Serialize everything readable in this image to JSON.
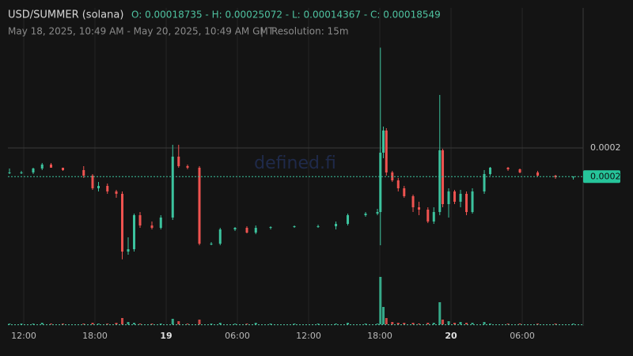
{
  "chart_data": {
    "type": "candlestick",
    "title": "USD/SUMMER (solana)",
    "ohlc": "O: 0.00018735 - H: 0.00025072 - L: 0.00014367 - C: 0.00018549",
    "subtitle": "May 18, 2025, 10:49 AM - May 20, 2025, 10:49 AM GMT",
    "separator": "|",
    "resolution": "Resolution: 15m",
    "watermark": "defined.fi",
    "up_color": "#3cc39e",
    "down_color": "#ef5350",
    "grid": true,
    "xlim": [
      0,
      48.33
    ],
    "xticks": [
      {
        "value": 1.2,
        "label": "12:00"
      },
      {
        "value": 7.2,
        "label": "18:00"
      },
      {
        "value": 13.2,
        "label": "19"
      },
      {
        "value": 19.2,
        "label": "06:00"
      },
      {
        "value": 25.2,
        "label": "12:00"
      },
      {
        "value": 31.2,
        "label": "18:00"
      },
      {
        "value": 37.2,
        "label": "20"
      },
      {
        "value": 43.2,
        "label": "06:00"
      }
    ],
    "ylim": [
      0.0001108,
      0.0002708
    ],
    "yticks": [
      0.0002
    ],
    "last_price": {
      "value": 0.00018549,
      "label": "0.0002"
    },
    "volume_lim": [
      0,
      60
    ],
    "candles": {
      "x": [
        0,
        1,
        2,
        2.75,
        3.5,
        4.5,
        6.25,
        7,
        7.5,
        8.25,
        9,
        9.5,
        10,
        10.5,
        11,
        12,
        12.75,
        13.75,
        14.25,
        15,
        16,
        17,
        17.75,
        19,
        20,
        20.75,
        22,
        24,
        26,
        27.5,
        28.5,
        30,
        31,
        31.25,
        31.5,
        31.75,
        32.25,
        32.75,
        33.25,
        34,
        34.5,
        35.25,
        35.75,
        36.25,
        36.5,
        37,
        37.5,
        38,
        38.5,
        39,
        40,
        40.5,
        42,
        43,
        44.5,
        46,
        47.5
      ],
      "open": [
        0.00018735,
        0.0001876,
        0.0001876,
        0.0001896,
        0.0001916,
        0.00019,
        0.0001888,
        0.000186,
        0.0001796,
        0.0001808,
        0.000178,
        0.0001768,
        0.0001476,
        0.0001488,
        0.000166,
        0.0001608,
        0.0001596,
        0.0001648,
        0.0001956,
        0.0001908,
        0.00019,
        0.0001516,
        0.0001516,
        0.0001588,
        0.0001596,
        0.0001572,
        0.0001596,
        0.00016,
        0.0001604,
        0.0001604,
        0.0001616,
        0.000166,
        0.0001668,
        0.0001676,
        0.0001976,
        0.0002088,
        0.0001876,
        0.0001836,
        0.0001796,
        0.0001756,
        0.00017,
        0.0001688,
        0.0001628,
        0.0001676,
        0.0001988,
        0.0001716,
        0.000178,
        0.0001728,
        0.0001768,
        0.0001676,
        0.000178,
        0.0001868,
        0.00019,
        0.0001892,
        0.0001876,
        0.000186,
        0.0001852
      ],
      "high": [
        0.0001896,
        0.0001884,
        0.00019,
        0.0001924,
        0.0001924,
        0.00019,
        0.0001908,
        0.0001868,
        0.0001828,
        0.000182,
        0.0001788,
        0.000178,
        0.0001548,
        0.0001668,
        0.0001676,
        0.0001628,
        0.000166,
        0.0002016,
        0.0002016,
        0.0001916,
        0.0001908,
        0.0001524,
        0.0001596,
        0.00016,
        0.0001604,
        0.0001608,
        0.0001604,
        0.0001608,
        0.0001612,
        0.0001628,
        0.0001668,
        0.0001676,
        0.0001692,
        0.00025072,
        0.0002108,
        0.00021,
        0.0001884,
        0.0001848,
        0.0001808,
        0.0001764,
        0.0001728,
        0.00017,
        0.00017,
        0.0002268,
        0.0001996,
        0.0001796,
        0.0001788,
        0.0001788,
        0.000178,
        0.0001796,
        0.0001888,
        0.0001904,
        0.0001904,
        0.0001896,
        0.0001884,
        0.0001864,
        0.0001856
      ],
      "low": [
        0.0001868,
        0.0001868,
        0.0001868,
        0.0001888,
        0.00019,
        0.0001884,
        0.0001848,
        0.0001788,
        0.000178,
        0.0001768,
        0.0001748,
        0.00014367,
        0.000146,
        0.0001476,
        0.0001596,
        0.0001588,
        0.0001588,
        0.0001636,
        0.00019,
        0.0001892,
        0.0001508,
        0.0001508,
        0.0001508,
        0.000158,
        0.0001568,
        0.0001564,
        0.0001588,
        0.0001596,
        0.0001596,
        0.0001588,
        0.0001608,
        0.0001652,
        0.000166,
        0.0001508,
        0.0001948,
        0.000186,
        0.0001828,
        0.000178,
        0.0001748,
        0.0001676,
        0.000166,
        0.000162,
        0.0001616,
        0.000166,
        0.00017,
        0.0001648,
        0.0001716,
        0.00017,
        0.000166,
        0.0001668,
        0.0001768,
        0.000186,
        0.0001884,
        0.0001872,
        0.0001856,
        0.0001844,
        0.000184
      ],
      "close": [
        0.0001876,
        0.0001876,
        0.0001896,
        0.0001916,
        0.00019,
        0.0001888,
        0.000186,
        0.0001796,
        0.0001808,
        0.000178,
        0.0001768,
        0.0001476,
        0.0001488,
        0.000166,
        0.0001608,
        0.0001596,
        0.0001648,
        0.0001956,
        0.0001908,
        0.00019,
        0.0001516,
        0.0001516,
        0.0001588,
        0.0001596,
        0.0001572,
        0.0001596,
        0.00016,
        0.0001604,
        0.0001604,
        0.0001616,
        0.000166,
        0.0001668,
        0.0001676,
        0.0001976,
        0.0002088,
        0.0001876,
        0.0001836,
        0.0001796,
        0.0001756,
        0.00017,
        0.0001688,
        0.0001628,
        0.0001676,
        0.0001988,
        0.0001716,
        0.000178,
        0.0001728,
        0.0001768,
        0.0001676,
        0.000178,
        0.0001868,
        0.00019,
        0.0001892,
        0.0001876,
        0.000186,
        0.0001852,
        0.00018549
      ],
      "volume": [
        1,
        1,
        1,
        2,
        1,
        1,
        1,
        2,
        1,
        1,
        2,
        8,
        3,
        2,
        1,
        1,
        1,
        7,
        4,
        1,
        6,
        1,
        2,
        1,
        1,
        2,
        1,
        1,
        1,
        1,
        2,
        1,
        1,
        60,
        22,
        8,
        3,
        2,
        2,
        2,
        1,
        2,
        2,
        28,
        6,
        4,
        2,
        3,
        2,
        2,
        3,
        1,
        1,
        1,
        1,
        1,
        1
      ]
    }
  }
}
